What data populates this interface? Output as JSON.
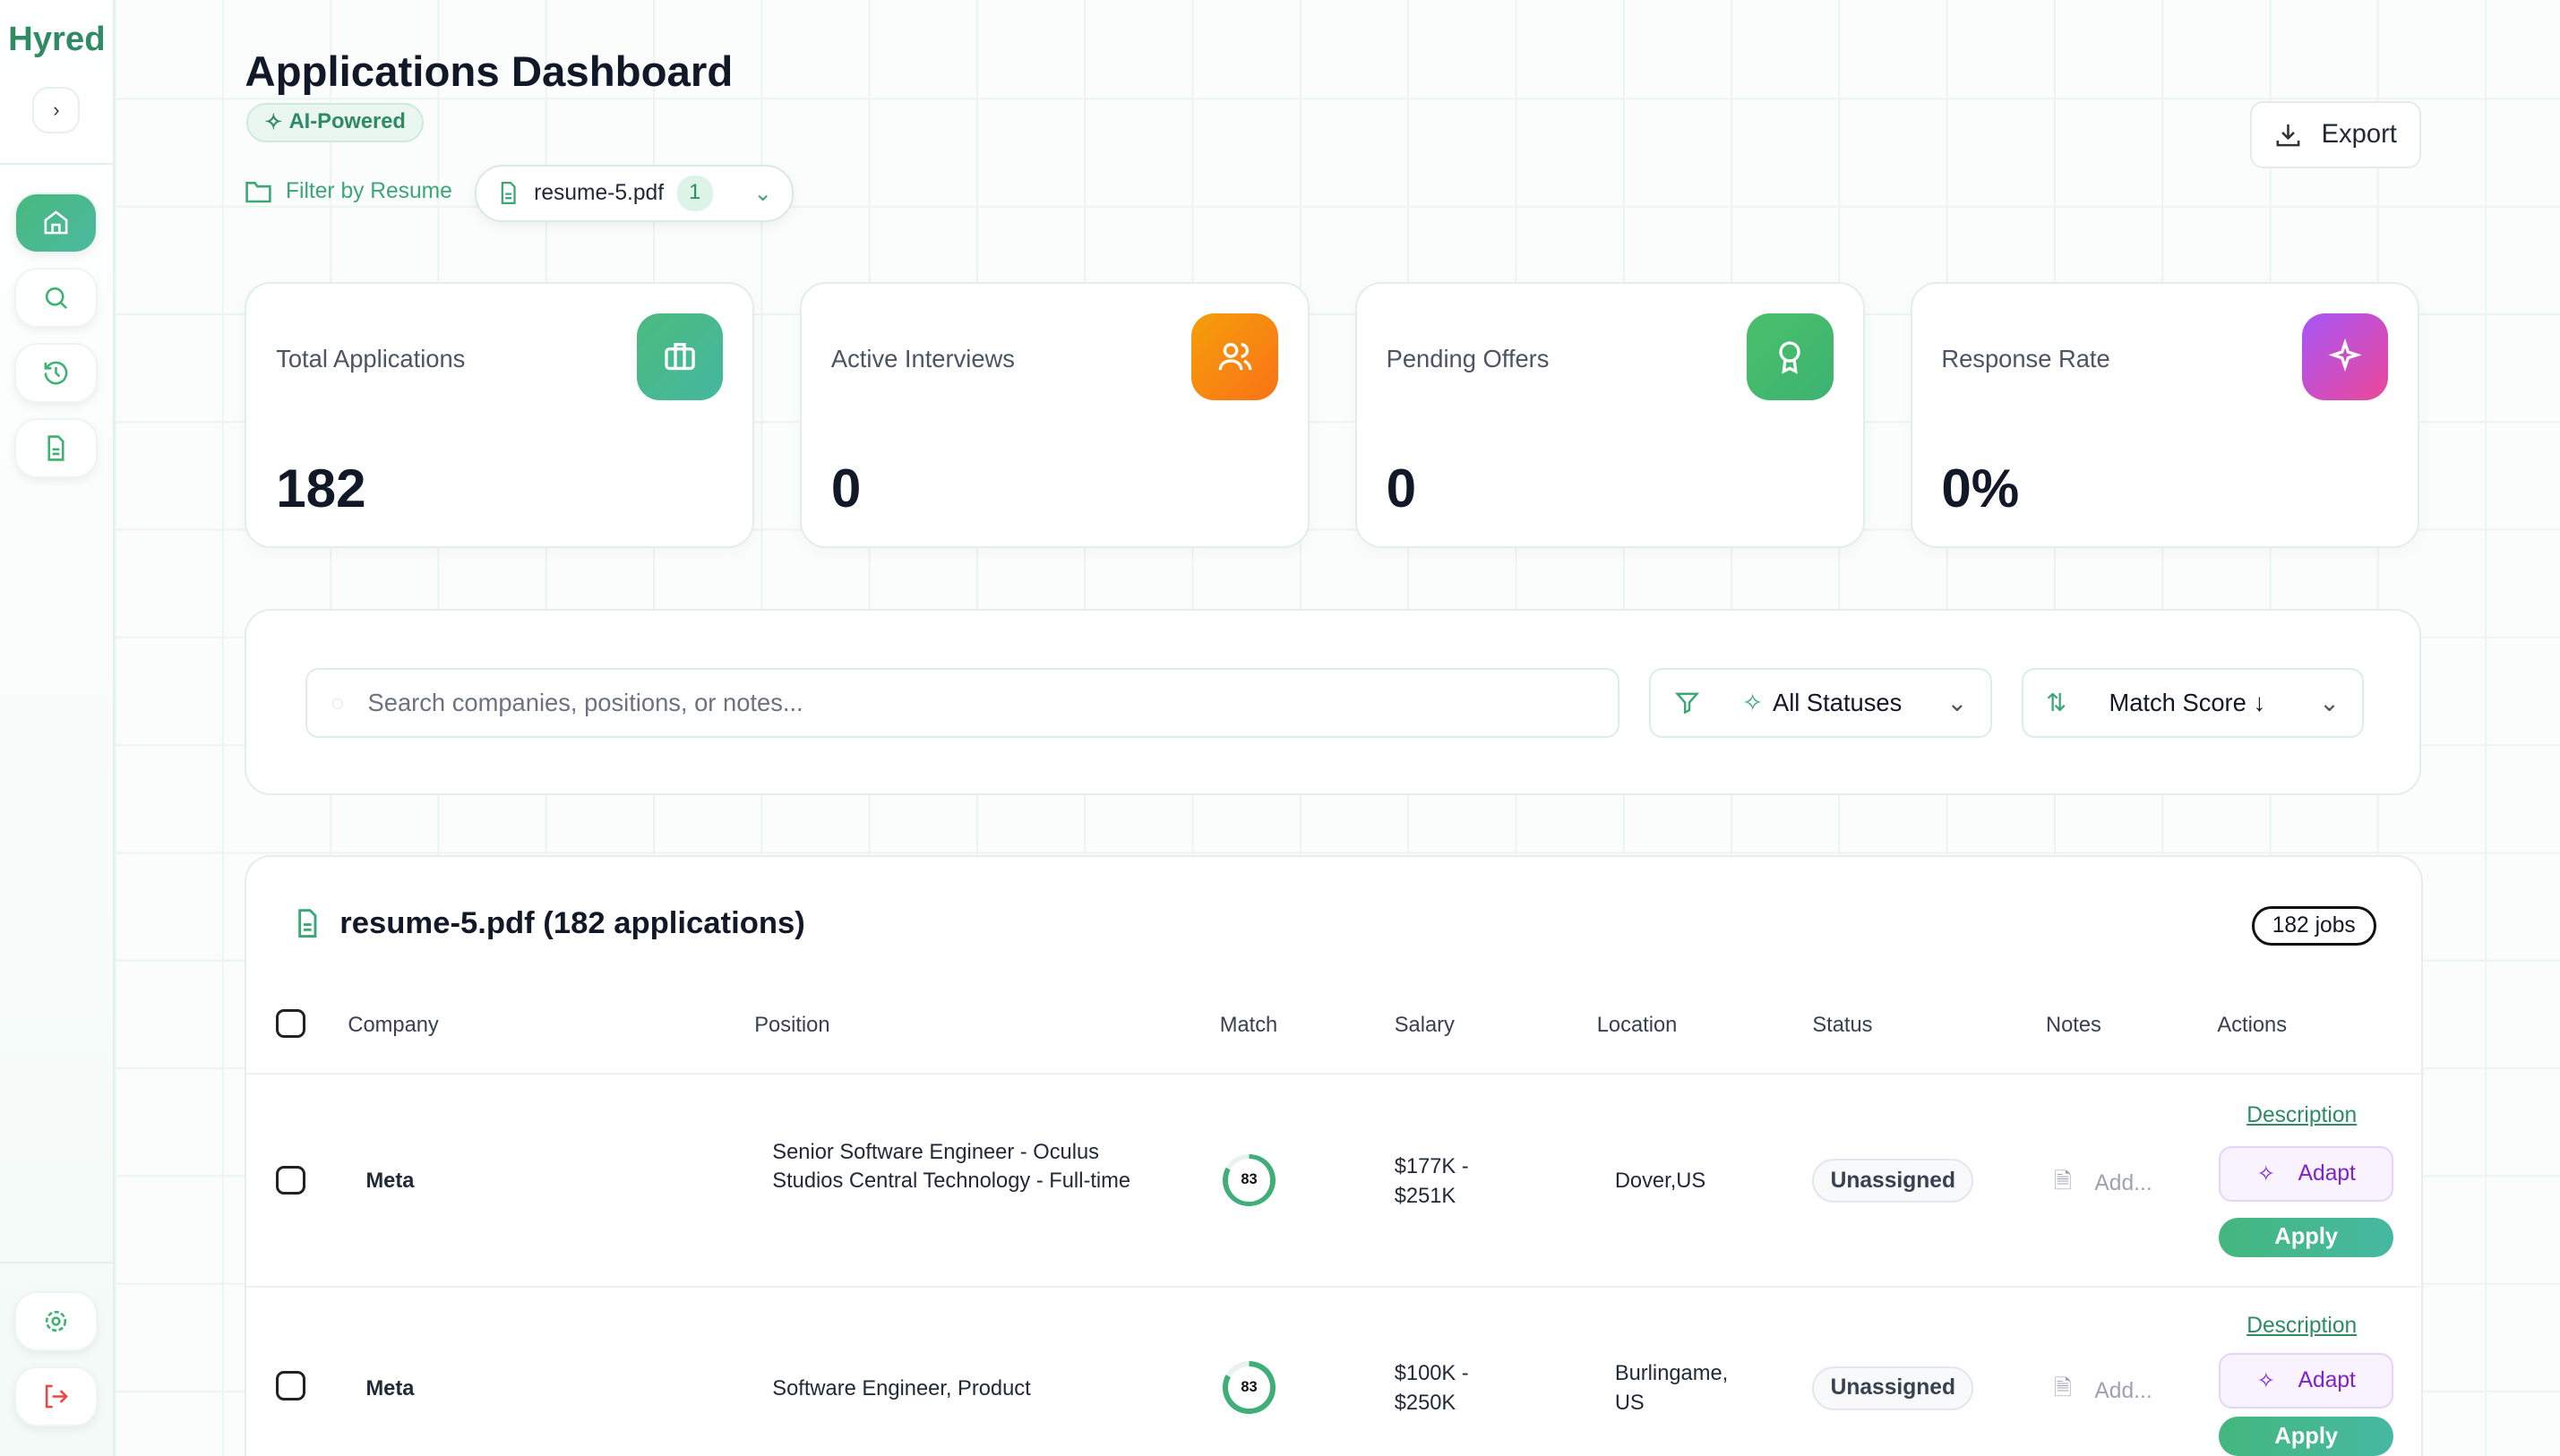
{
  "app": {
    "logo": "Hyred"
  },
  "sidebar": {
    "items": [
      {
        "icon": "home-icon",
        "active": true
      },
      {
        "icon": "search-icon"
      },
      {
        "icon": "history-icon"
      },
      {
        "icon": "document-icon"
      }
    ],
    "bottom": [
      {
        "icon": "gear-icon"
      },
      {
        "icon": "logout-icon"
      }
    ]
  },
  "header": {
    "title": "Applications Dashboard",
    "badge": "AI-Powered",
    "filter_label": "Filter by Resume",
    "resume": "resume-5.pdf",
    "resume_count": "1",
    "export_label": "Export"
  },
  "stats": [
    {
      "label": "Total Applications",
      "value": "182",
      "icon": "briefcase-icon",
      "color": "#44b98a"
    },
    {
      "label": "Active Interviews",
      "value": "0",
      "icon": "users-icon",
      "color": "#f7811a"
    },
    {
      "label": "Pending Offers",
      "value": "0",
      "icon": "award-icon",
      "color": "#41b76a"
    },
    {
      "label": "Response Rate",
      "value": "0%",
      "icon": "sparkle-icon",
      "color": "#c03ae6"
    }
  ],
  "filters": {
    "search_placeholder": "Search companies, positions, or notes...",
    "status": "All Statuses",
    "sort": "Match Score ↓"
  },
  "table": {
    "title": "resume-5.pdf (182 applications)",
    "jobs_badge": "182 jobs",
    "columns": [
      "Company",
      "Position",
      "Match",
      "Salary",
      "Location",
      "Status",
      "Notes",
      "Actions"
    ],
    "rows": [
      {
        "company": "Meta",
        "position": "Senior Software Engineer - Oculus Studios Central Technology - Full-time",
        "match": "83",
        "salary": "$177K - $251K",
        "location": "Dover,US",
        "status": "Unassigned",
        "notes": "Add...",
        "description": "Description",
        "adapt": "Adapt",
        "apply": "Apply"
      },
      {
        "company": "Meta",
        "position": "Software Engineer, Product",
        "match": "83",
        "salary": "$100K - $250K",
        "location": "Burlingame, US",
        "status": "Unassigned",
        "notes": "Add...",
        "description": "Description",
        "adapt": "Adapt",
        "apply": "Apply"
      }
    ]
  }
}
